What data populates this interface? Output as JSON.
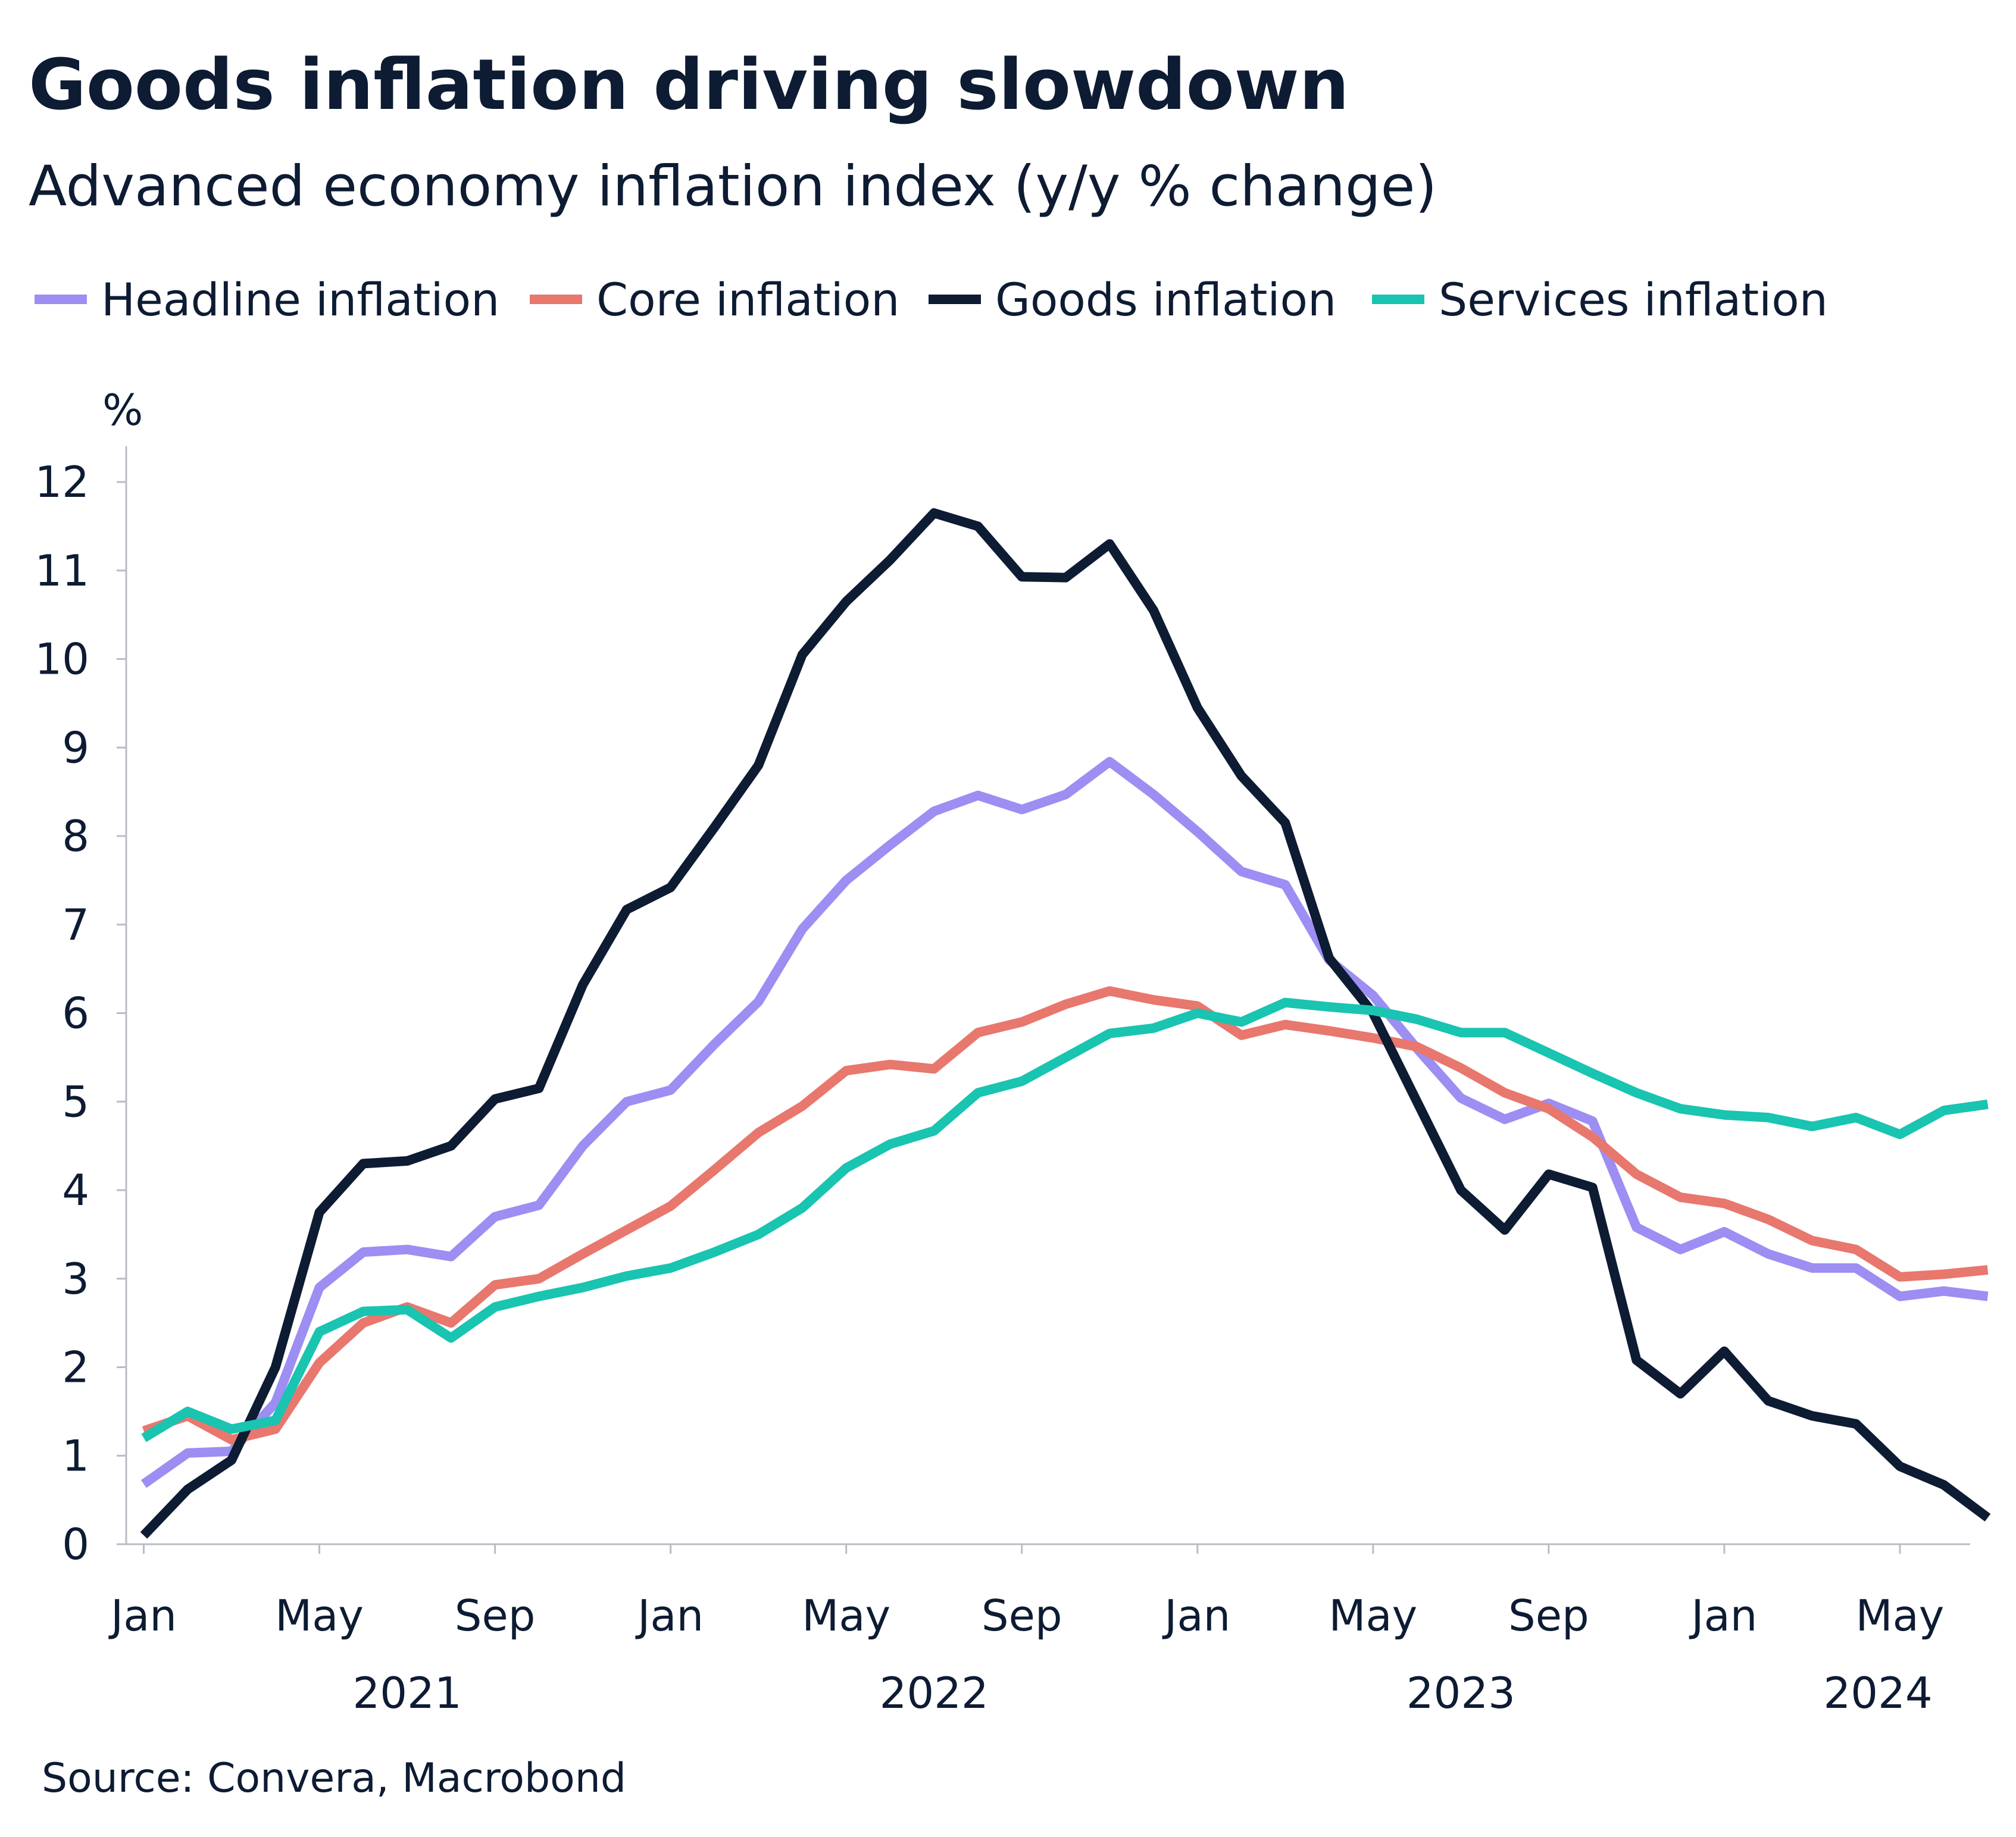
{
  "chart_data": {
    "type": "line",
    "title": "Goods inflation driving slowdown",
    "subtitle": "Advanced economy inflation index (y/y % change)",
    "ylabel": "%",
    "xlabel": "",
    "ylim": [
      0,
      12
    ],
    "yticks": [
      0,
      1,
      2,
      3,
      4,
      5,
      6,
      7,
      8,
      9,
      10,
      11,
      12
    ],
    "x_start_index": -0.4,
    "x_end_index": 41.6,
    "x_ticks": [
      {
        "index": 0,
        "label": "Jan"
      },
      {
        "index": 4,
        "label": "May"
      },
      {
        "index": 8,
        "label": "Sep"
      },
      {
        "index": 12,
        "label": "Jan"
      },
      {
        "index": 16,
        "label": "May"
      },
      {
        "index": 20,
        "label": "Sep"
      },
      {
        "index": 24,
        "label": "Jan"
      },
      {
        "index": 28,
        "label": "May"
      },
      {
        "index": 32,
        "label": "Sep"
      },
      {
        "index": 36,
        "label": "Jan"
      },
      {
        "index": 40,
        "label": "May"
      }
    ],
    "year_labels": [
      {
        "center_index": 6,
        "label": "2021"
      },
      {
        "center_index": 18,
        "label": "2022"
      },
      {
        "center_index": 30,
        "label": "2023"
      },
      {
        "center_index": 39.5,
        "label": "2024"
      }
    ],
    "grid": false,
    "legend_position": "top-left",
    "series": [
      {
        "name": "Headline inflation",
        "color": "#9c8ef2",
        "values": [
          0.68,
          1.03,
          1.05,
          1.6,
          2.9,
          3.3,
          3.33,
          3.25,
          3.7,
          3.83,
          4.5,
          5.0,
          5.13,
          5.65,
          6.13,
          6.95,
          7.5,
          7.9,
          8.28,
          8.46,
          8.3,
          8.47,
          8.84,
          8.47,
          8.05,
          7.6,
          7.45,
          6.6,
          6.2,
          5.6,
          5.04,
          4.8,
          4.98,
          4.78,
          3.58,
          3.33,
          3.53,
          3.28,
          3.12,
          3.12,
          2.8,
          2.86,
          2.8
        ]
      },
      {
        "name": "Core inflation",
        "color": "#e8776e",
        "values": [
          1.28,
          1.45,
          1.18,
          1.3,
          2.05,
          2.5,
          2.68,
          2.5,
          2.93,
          3.0,
          3.28,
          3.55,
          3.82,
          4.23,
          4.65,
          4.95,
          5.35,
          5.42,
          5.37,
          5.78,
          5.9,
          6.1,
          6.25,
          6.15,
          6.08,
          5.75,
          5.87,
          5.8,
          5.72,
          5.62,
          5.38,
          5.1,
          4.92,
          4.6,
          4.18,
          3.92,
          3.85,
          3.67,
          3.43,
          3.33,
          3.02,
          3.05,
          3.1
        ]
      },
      {
        "name": "Goods inflation",
        "color": "#0d1b33",
        "values": [
          0.1,
          0.62,
          0.95,
          2.0,
          3.75,
          4.3,
          4.33,
          4.5,
          5.03,
          5.15,
          6.32,
          7.17,
          7.42,
          8.1,
          8.8,
          10.05,
          10.65,
          11.12,
          11.65,
          11.5,
          10.93,
          10.92,
          11.3,
          10.55,
          9.45,
          8.68,
          8.15,
          6.62,
          6.0,
          5.0,
          4.0,
          3.55,
          4.18,
          4.03,
          2.08,
          1.7,
          2.18,
          1.62,
          1.45,
          1.36,
          0.88,
          0.67,
          0.3
        ]
      },
      {
        "name": "Services inflation",
        "color": "#19c4b1",
        "values": [
          1.2,
          1.5,
          1.3,
          1.4,
          2.4,
          2.63,
          2.65,
          2.33,
          2.68,
          2.8,
          2.9,
          3.03,
          3.12,
          3.3,
          3.5,
          3.8,
          4.25,
          4.52,
          4.67,
          5.1,
          5.23,
          5.5,
          5.77,
          5.83,
          6.0,
          5.9,
          6.12,
          6.07,
          6.03,
          5.93,
          5.78,
          5.78,
          5.55,
          5.32,
          5.1,
          4.92,
          4.85,
          4.82,
          4.72,
          4.82,
          4.63,
          4.9,
          4.97
        ]
      }
    ]
  },
  "legend": {
    "items": [
      {
        "label": "Headline inflation",
        "color": "#9c8ef2"
      },
      {
        "label": "Core inflation",
        "color": "#e8776e"
      },
      {
        "label": "Goods inflation",
        "color": "#0d1b33"
      },
      {
        "label": "Services inflation",
        "color": "#19c4b1"
      }
    ]
  },
  "source": "Source: Convera, Macrobond"
}
